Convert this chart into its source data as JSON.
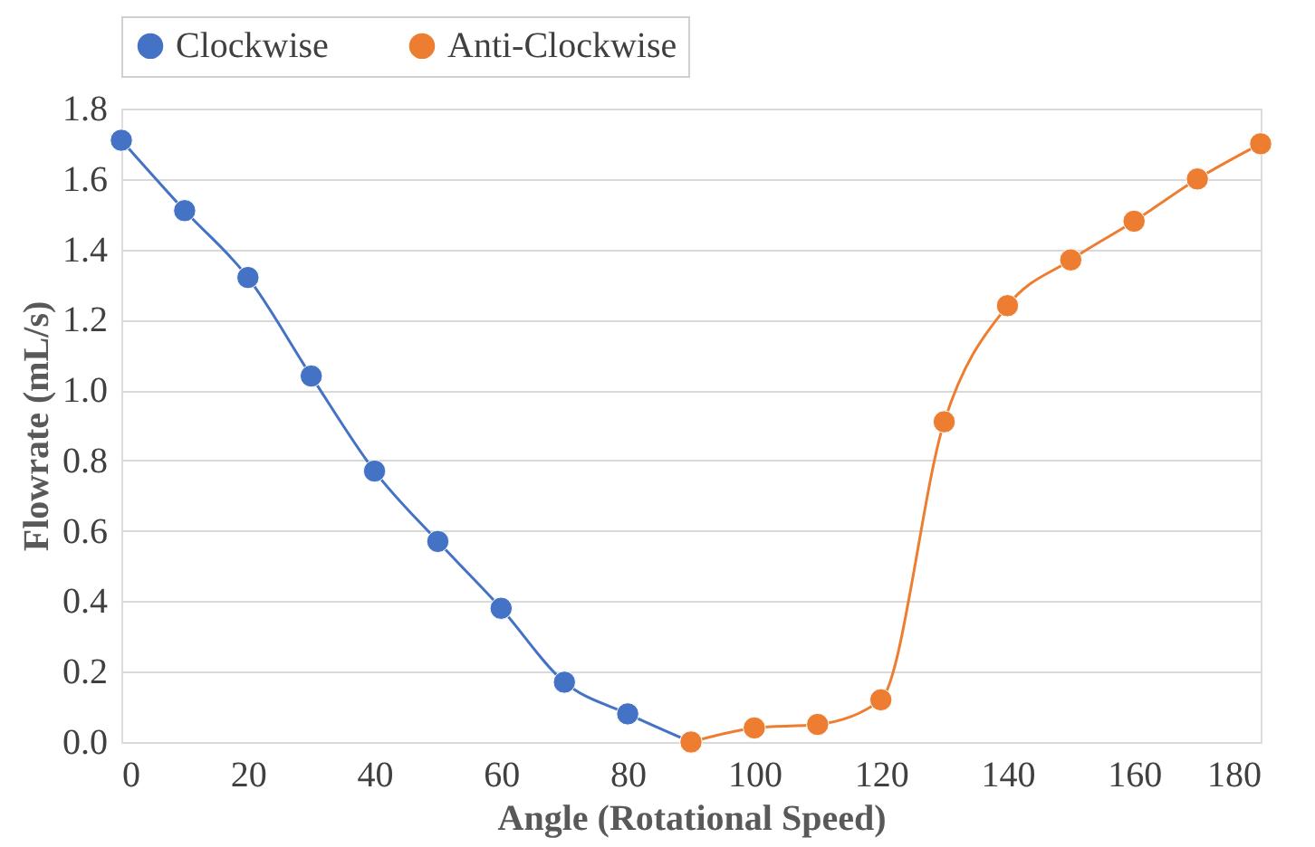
{
  "chart_data": {
    "type": "line",
    "xlabel": "Angle (Rotational Speed)",
    "ylabel": "Flowrate (mL/s)",
    "xlim": [
      0,
      180
    ],
    "xticks": [
      0,
      20,
      40,
      60,
      80,
      100,
      120,
      140,
      160,
      180
    ],
    "ylim": [
      0,
      1.8
    ],
    "yticks": [
      {
        "value": 0,
        "label": "0.0"
      },
      {
        "value": 0.2,
        "label": "0.2"
      },
      {
        "value": 0.4,
        "label": "0.4"
      },
      {
        "value": 0.6,
        "label": "0.6"
      },
      {
        "value": 0.8,
        "label": "0.8"
      },
      {
        "value": 1.0,
        "label": "1.0"
      },
      {
        "value": 1.2,
        "label": "1.2"
      },
      {
        "value": 1.4,
        "label": "1.4"
      },
      {
        "value": 1.6,
        "label": "1.6"
      },
      {
        "value": 1.8,
        "label": "1.8"
      }
    ],
    "grid": "y",
    "legend": "top",
    "marker": "circle",
    "line_style": "solid",
    "series": [
      {
        "name": "Clockwise",
        "color": "#4472c4",
        "x": [
          0,
          10,
          20,
          30,
          40,
          50,
          60,
          70,
          80,
          90
        ],
        "values": [
          1.71,
          1.51,
          1.32,
          1.04,
          0.77,
          0.57,
          0.38,
          0.17,
          0.08,
          0.0
        ]
      },
      {
        "name": "Anti-Clockwise",
        "color": "#ed7d31",
        "x": [
          90,
          100,
          110,
          120,
          130,
          140,
          150,
          160,
          170,
          180
        ],
        "values": [
          0.0,
          0.04,
          0.05,
          0.12,
          0.91,
          1.24,
          1.37,
          1.48,
          1.6,
          1.7
        ]
      }
    ]
  }
}
